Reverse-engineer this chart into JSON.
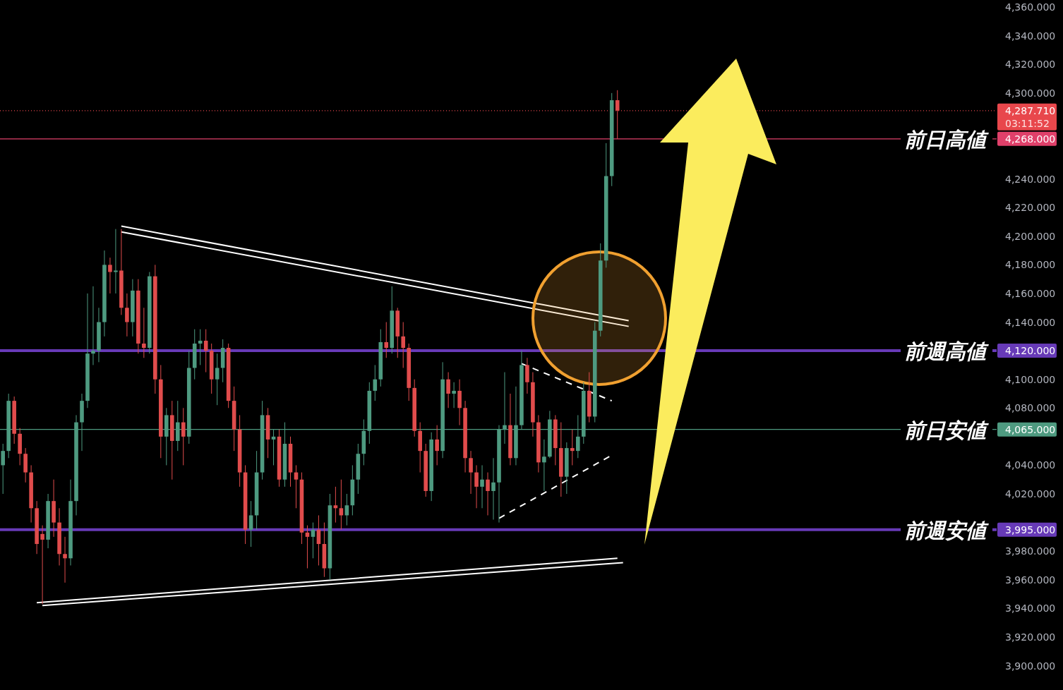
{
  "chart_data": {
    "type": "candlestick",
    "categories": [
      null,
      null,
      null,
      null,
      null,
      null,
      null,
      null,
      null,
      null,
      null,
      null,
      null,
      null,
      null,
      null,
      null,
      null,
      null,
      null,
      null,
      null,
      null,
      null,
      null,
      null,
      null,
      null,
      null,
      null,
      null,
      null,
      null,
      null,
      null,
      null,
      null,
      null,
      null,
      null,
      null,
      null,
      null,
      null,
      null,
      null,
      null,
      null,
      null,
      null,
      null,
      null,
      null,
      null,
      null,
      null,
      null,
      null,
      null,
      null,
      null,
      null,
      null,
      null,
      null,
      null,
      null,
      null,
      null,
      null,
      null,
      null,
      null,
      null,
      null,
      null,
      null,
      null,
      null,
      null,
      null,
      null,
      null,
      null,
      null,
      null,
      null,
      null,
      null,
      null,
      null,
      null,
      null,
      null,
      null,
      null,
      null,
      null,
      null,
      null,
      null,
      null,
      null,
      null,
      null,
      null,
      null,
      null,
      null,
      null,
      null,
      null,
      null,
      null,
      null,
      null,
      null,
      null,
      null,
      null,
      null,
      null,
      null,
      null,
      null,
      null,
      null,
      null,
      null,
      null,
      null,
      null,
      null,
      null,
      null,
      null,
      null,
      null,
      null,
      null,
      null,
      null,
      null,
      null,
      null,
      null,
      null,
      null,
      null,
      null,
      null,
      null,
      null,
      null,
      null,
      null,
      null,
      null,
      null,
      null,
      null,
      null,
      null,
      null,
      null,
      null,
      null,
      null,
      null,
      null,
      null,
      null,
      null,
      null,
      null,
      null
    ],
    "ohlc": [
      [
        4040,
        4055,
        4020,
        4050
      ],
      [
        4050,
        4090,
        4045,
        4085
      ],
      [
        4085,
        4088,
        4055,
        4062
      ],
      [
        4062,
        4066,
        4040,
        4048
      ],
      [
        4048,
        4052,
        4028,
        4035
      ],
      [
        4035,
        4040,
        4000,
        4010
      ],
      [
        4010,
        4015,
        3978,
        3985
      ],
      [
        3992,
        3998,
        3943,
        3988
      ],
      [
        3988,
        4020,
        3982,
        4015
      ],
      [
        4015,
        4030,
        3990,
        4000
      ],
      [
        4000,
        4010,
        3970,
        3978
      ],
      [
        3978,
        3990,
        3958,
        3975
      ],
      [
        3975,
        4030,
        3970,
        4015
      ],
      [
        4015,
        4075,
        4005,
        4070
      ],
      [
        4070,
        4090,
        4050,
        4085
      ],
      [
        4085,
        4160,
        4080,
        4118
      ],
      [
        4118,
        4165,
        4110,
        4120
      ],
      [
        4120,
        4150,
        4112,
        4140
      ],
      [
        4140,
        4190,
        4130,
        4180
      ],
      [
        4180,
        4185,
        4160,
        4175
      ],
      [
        4175,
        4205,
        4160,
        4176
      ],
      [
        4176,
        4205,
        4145,
        4150
      ],
      [
        4150,
        4160,
        4130,
        4140
      ],
      [
        4140,
        4170,
        4130,
        4162
      ],
      [
        4162,
        4170,
        4118,
        4125
      ],
      [
        4125,
        4150,
        4115,
        4122
      ],
      [
        4122,
        4175,
        4118,
        4172
      ],
      [
        4172,
        4180,
        4090,
        4100
      ],
      [
        4100,
        4110,
        4045,
        4060
      ],
      [
        4060,
        4080,
        4040,
        4075
      ],
      [
        4075,
        4085,
        4030,
        4057
      ],
      [
        4057,
        4085,
        4050,
        4070
      ],
      [
        4070,
        4080,
        4040,
        4060
      ],
      [
        4060,
        4120,
        4055,
        4108
      ],
      [
        4108,
        4135,
        4100,
        4125
      ],
      [
        4125,
        4135,
        4110,
        4127
      ],
      [
        4127,
        4135,
        4105,
        4120
      ],
      [
        4120,
        4125,
        4090,
        4100
      ],
      [
        4100,
        4118,
        4082,
        4108
      ],
      [
        4108,
        4128,
        4098,
        4122
      ],
      [
        4122,
        4125,
        4080,
        4085
      ],
      [
        4085,
        4095,
        4050,
        4065
      ],
      [
        4065,
        4075,
        4025,
        4035
      ],
      [
        4035,
        4040,
        3985,
        3995
      ],
      [
        3995,
        4015,
        3983,
        4005
      ],
      [
        4005,
        4050,
        3995,
        4035
      ],
      [
        4035,
        4085,
        4030,
        4075
      ],
      [
        4075,
        4080,
        4045,
        4058
      ],
      [
        4058,
        4065,
        4040,
        4060
      ],
      [
        4060,
        4065,
        4025,
        4030
      ],
      [
        4030,
        4070,
        4025,
        4055
      ],
      [
        4055,
        4060,
        4025,
        4035
      ],
      [
        4035,
        4040,
        4010,
        4030
      ],
      [
        4030,
        4035,
        3985,
        3993
      ],
      [
        3993,
        3998,
        3968,
        3990
      ],
      [
        3990,
        4000,
        3975,
        3995
      ],
      [
        3995,
        4005,
        3970,
        3985
      ],
      [
        3985,
        4000,
        3962,
        3968
      ],
      [
        3968,
        4020,
        3960,
        4012
      ],
      [
        4012,
        4025,
        4000,
        4010
      ],
      [
        4010,
        4030,
        3995,
        4005
      ],
      [
        4005,
        4020,
        3998,
        4012
      ],
      [
        4012,
        4040,
        4005,
        4030
      ],
      [
        4030,
        4055,
        4020,
        4048
      ],
      [
        4048,
        4072,
        4040,
        4064
      ],
      [
        4064,
        4098,
        4055,
        4092
      ],
      [
        4092,
        4110,
        4085,
        4100
      ],
      [
        4100,
        4135,
        4095,
        4126
      ],
      [
        4126,
        4140,
        4115,
        4122
      ],
      [
        4122,
        4165,
        4118,
        4148
      ],
      [
        4148,
        4150,
        4115,
        4130
      ],
      [
        4130,
        4140,
        4108,
        4122
      ],
      [
        4122,
        4125,
        4085,
        4094
      ],
      [
        4094,
        4100,
        4060,
        4064
      ],
      [
        4064,
        4070,
        4035,
        4050
      ],
      [
        4050,
        4055,
        4018,
        4022
      ],
      [
        4022,
        4063,
        4015,
        4058
      ],
      [
        4058,
        4068,
        4040,
        4050
      ],
      [
        4050,
        4112,
        4045,
        4100
      ],
      [
        4100,
        4105,
        4080,
        4090
      ],
      [
        4090,
        4098,
        4080,
        4092
      ],
      [
        4092,
        4100,
        4068,
        4080
      ],
      [
        4080,
        4085,
        4035,
        4045
      ],
      [
        4045,
        4050,
        4020,
        4035
      ],
      [
        4035,
        4040,
        4010,
        4025
      ],
      [
        4025,
        4040,
        4010,
        4030
      ],
      [
        4030,
        4035,
        4005,
        4022
      ],
      [
        4022,
        4045,
        4002,
        4028
      ],
      [
        4028,
        4068,
        4000,
        4065
      ],
      [
        4065,
        4105,
        4055,
        4068
      ],
      [
        4068,
        4090,
        4040,
        4045
      ],
      [
        4045,
        4095,
        4040,
        4068
      ],
      [
        4068,
        4120,
        4065,
        4110
      ],
      [
        4110,
        4115,
        4090,
        4098
      ],
      [
        4098,
        4105,
        4060,
        4070
      ],
      [
        4070,
        4075,
        4035,
        4042
      ],
      [
        4042,
        4058,
        4022,
        4046
      ],
      [
        4046,
        4078,
        4045,
        4072
      ],
      [
        4072,
        4075,
        4040,
        4052
      ],
      [
        4052,
        4070,
        4018,
        4032
      ],
      [
        4032,
        4056,
        4020,
        4052
      ],
      [
        4052,
        4065,
        4040,
        4050
      ],
      [
        4050,
        4075,
        4045,
        4060
      ],
      [
        4060,
        4098,
        4055,
        4092
      ],
      [
        4092,
        4105,
        4070,
        4074
      ],
      [
        4074,
        4140,
        4070,
        4134
      ],
      [
        4134,
        4195,
        4130,
        4183
      ],
      [
        4183,
        4265,
        4178,
        4242
      ],
      [
        4242,
        4300,
        4235,
        4295
      ],
      [
        4295,
        4302,
        4268,
        4287.71
      ],
      null,
      null,
      null,
      null,
      null,
      null,
      null,
      null,
      null,
      null,
      null,
      null,
      null,
      null,
      null,
      null,
      null,
      null,
      null,
      null,
      null,
      null,
      null,
      null,
      null,
      null,
      null,
      null,
      null,
      null,
      null,
      null,
      null,
      null,
      null,
      null,
      null,
      null,
      null,
      null,
      null,
      null,
      null,
      null,
      null,
      null,
      null,
      null,
      null,
      null,
      null,
      null,
      null,
      null,
      null,
      null,
      null,
      null,
      null,
      null,
      null,
      null,
      null,
      null,
      null,
      null
    ],
    "series": [
      {
        "type": "line",
        "color": "#ffffff",
        "values": [
          null,
          null,
          null,
          null,
          null,
          null,
          null,
          null,
          null,
          null,
          null,
          null,
          null,
          null,
          null,
          null,
          null,
          null,
          null,
          null,
          null,
          4207,
          null,
          null,
          null,
          null,
          null,
          null,
          null,
          null,
          null,
          null,
          null,
          null,
          null,
          null,
          null,
          null,
          null,
          null,
          null,
          null,
          null,
          null,
          null,
          null,
          null,
          null,
          null,
          null,
          null,
          null,
          null,
          null,
          null,
          null,
          null,
          null,
          null,
          null,
          null,
          null,
          null,
          null,
          null,
          null,
          null,
          null,
          null,
          null,
          null,
          null,
          null,
          null,
          null,
          null,
          null,
          null,
          null,
          null,
          null,
          null,
          null,
          null,
          null,
          null,
          null,
          null,
          null,
          null,
          null,
          null,
          null,
          null,
          null,
          null,
          null,
          null,
          null,
          null,
          null,
          null,
          null,
          null,
          null,
          null,
          null,
          null,
          null,
          null,
          null,
          4141,
          null,
          null,
          null,
          null,
          null,
          null,
          null,
          null,
          null,
          null,
          null,
          null,
          null,
          null,
          null,
          null,
          null,
          null,
          null,
          null,
          null,
          null,
          null,
          null,
          null,
          null,
          null,
          null,
          null,
          null,
          null,
          null,
          null,
          null,
          null,
          null,
          null,
          null,
          null,
          null,
          null,
          null,
          null,
          null,
          null,
          null,
          null,
          null,
          null,
          null,
          null,
          null,
          null,
          null,
          null,
          null,
          null,
          null,
          null,
          null,
          null,
          null,
          null,
          null
        ]
      },
      {
        "type": "line",
        "color": "#ffffff",
        "values": [
          null,
          null,
          null,
          null,
          null,
          null,
          null,
          null,
          null,
          null,
          null,
          null,
          null,
          null,
          null,
          null,
          null,
          null,
          null,
          null,
          null,
          4203,
          null,
          null,
          null,
          null,
          null,
          null,
          null,
          null,
          null,
          null,
          null,
          null,
          null,
          null,
          null,
          null,
          null,
          null,
          null,
          null,
          null,
          null,
          null,
          null,
          null,
          null,
          null,
          null,
          null,
          null,
          null,
          null,
          null,
          null,
          null,
          null,
          null,
          null,
          null,
          null,
          null,
          null,
          null,
          null,
          null,
          null,
          null,
          null,
          null,
          null,
          null,
          null,
          null,
          null,
          null,
          null,
          null,
          null,
          null,
          null,
          null,
          null,
          null,
          null,
          null,
          null,
          null,
          null,
          null,
          null,
          null,
          null,
          null,
          null,
          null,
          null,
          null,
          null,
          null,
          null,
          null,
          null,
          null,
          null,
          null,
          null,
          null,
          null,
          null,
          4137,
          null,
          null,
          null,
          null,
          null,
          null,
          null,
          null,
          null,
          null,
          null,
          null,
          null,
          null,
          null,
          null,
          null,
          null,
          null,
          null,
          null,
          null,
          null,
          null,
          null,
          null,
          null,
          null,
          null,
          null,
          null,
          null,
          null,
          null,
          null,
          null,
          null,
          null,
          null,
          null,
          null,
          null,
          null,
          null,
          null,
          null,
          null,
          null,
          null,
          null,
          null,
          null,
          null,
          null,
          null,
          null,
          null,
          null,
          null,
          null,
          null,
          null,
          null,
          null
        ]
      },
      {
        "type": "line",
        "color": "#ffffff",
        "values": [
          null,
          null,
          null,
          null,
          null,
          null,
          3944,
          null,
          null,
          null,
          null,
          null,
          null,
          null,
          null,
          null,
          null,
          null,
          null,
          null,
          null,
          null,
          null,
          null,
          null,
          null,
          null,
          null,
          null,
          null,
          null,
          null,
          null,
          null,
          null,
          null,
          null,
          null,
          null,
          null,
          null,
          null,
          null,
          null,
          null,
          null,
          null,
          null,
          null,
          null,
          null,
          null,
          null,
          null,
          null,
          null,
          null,
          null,
          null,
          null,
          null,
          null,
          null,
          null,
          null,
          null,
          null,
          null,
          null,
          null,
          null,
          null,
          null,
          null,
          null,
          null,
          null,
          null,
          null,
          null,
          null,
          null,
          null,
          null,
          null,
          null,
          null,
          null,
          null,
          null,
          null,
          null,
          null,
          null,
          null,
          null,
          null,
          null,
          null,
          null,
          null,
          null,
          null,
          null,
          null,
          null,
          null,
          null,
          null,
          3975,
          null,
          null,
          null,
          null,
          null,
          null,
          null,
          null,
          null,
          null,
          null,
          null,
          null,
          null,
          null,
          null,
          null,
          null,
          null,
          null,
          null,
          null,
          null,
          null,
          null,
          null,
          null,
          null,
          null,
          null,
          null,
          null,
          null,
          null,
          null,
          null,
          null,
          null,
          null,
          null,
          null,
          null,
          null,
          null,
          null,
          null,
          null,
          null,
          null,
          null,
          null,
          null,
          null,
          null,
          null,
          null,
          null,
          null,
          null,
          null,
          null,
          null,
          null,
          null,
          null,
          null
        ]
      },
      {
        "type": "line",
        "color": "#ffffff",
        "values": [
          null,
          null,
          null,
          null,
          null,
          null,
          null,
          3942,
          null,
          null,
          null,
          null,
          null,
          null,
          null,
          null,
          null,
          null,
          null,
          null,
          null,
          null,
          null,
          null,
          null,
          null,
          null,
          null,
          null,
          null,
          null,
          null,
          null,
          null,
          null,
          null,
          null,
          null,
          null,
          null,
          null,
          null,
          null,
          null,
          null,
          null,
          null,
          null,
          null,
          null,
          null,
          null,
          null,
          null,
          null,
          null,
          null,
          null,
          null,
          null,
          null,
          null,
          null,
          null,
          null,
          null,
          null,
          null,
          null,
          null,
          null,
          null,
          null,
          null,
          null,
          null,
          null,
          null,
          null,
          null,
          null,
          null,
          null,
          null,
          null,
          null,
          null,
          null,
          null,
          null,
          null,
          null,
          null,
          null,
          null,
          null,
          null,
          null,
          null,
          null,
          null,
          null,
          null,
          null,
          null,
          null,
          null,
          null,
          null,
          null,
          3972,
          null,
          null,
          null,
          null,
          null,
          null,
          null,
          null,
          null,
          null,
          null,
          null,
          null,
          null,
          null,
          null,
          null,
          null,
          null,
          null,
          null,
          null,
          null,
          null,
          null,
          null,
          null,
          null,
          null,
          null,
          null,
          null,
          null,
          null,
          null,
          null,
          null,
          null,
          null,
          null,
          null,
          null,
          null,
          null,
          null,
          null,
          null,
          null,
          null,
          null,
          null,
          null,
          null,
          null,
          null,
          null,
          null,
          null,
          null,
          null,
          null,
          null,
          null,
          null,
          null
        ]
      },
      {
        "type": "line",
        "color": "#ffffff",
        "line_style": "dashed",
        "values": [
          null,
          null,
          null,
          null,
          null,
          null,
          null,
          null,
          null,
          null,
          null,
          null,
          null,
          null,
          null,
          null,
          null,
          null,
          null,
          null,
          null,
          null,
          null,
          null,
          null,
          null,
          null,
          null,
          null,
          null,
          null,
          null,
          null,
          null,
          null,
          null,
          null,
          null,
          null,
          null,
          null,
          null,
          null,
          null,
          null,
          null,
          null,
          null,
          null,
          null,
          null,
          null,
          null,
          null,
          null,
          null,
          null,
          null,
          null,
          null,
          null,
          null,
          null,
          null,
          null,
          null,
          null,
          null,
          null,
          null,
          null,
          null,
          null,
          null,
          null,
          null,
          null,
          null,
          null,
          null,
          null,
          null,
          null,
          null,
          null,
          null,
          null,
          null,
          null,
          null,
          null,
          null,
          4111,
          null,
          null,
          null,
          null,
          null,
          null,
          null,
          null,
          null,
          null,
          null,
          null,
          null,
          null,
          null,
          4085,
          null,
          null,
          null,
          null,
          null,
          null,
          null,
          null,
          null,
          null,
          null,
          null,
          null,
          null,
          null,
          null,
          null,
          null,
          null,
          null,
          null,
          null,
          null,
          null,
          null,
          null,
          null,
          null,
          null,
          null,
          null,
          null,
          null,
          null,
          null,
          null,
          null,
          null,
          null,
          null,
          null,
          null,
          null,
          null,
          null,
          null,
          null,
          null,
          null,
          null,
          null,
          null,
          null,
          null,
          null,
          null,
          null,
          null,
          null,
          null,
          null,
          null,
          null,
          null,
          null,
          null,
          null
        ]
      },
      {
        "type": "line",
        "color": "#ffffff",
        "line_style": "dashed",
        "values": [
          null,
          null,
          null,
          null,
          null,
          null,
          null,
          null,
          null,
          null,
          null,
          null,
          null,
          null,
          null,
          null,
          null,
          null,
          null,
          null,
          null,
          null,
          null,
          null,
          null,
          null,
          null,
          null,
          null,
          null,
          null,
          null,
          null,
          null,
          null,
          null,
          null,
          null,
          null,
          null,
          null,
          null,
          null,
          null,
          null,
          null,
          null,
          null,
          null,
          null,
          null,
          null,
          null,
          null,
          null,
          null,
          null,
          null,
          null,
          null,
          null,
          null,
          null,
          null,
          null,
          null,
          null,
          null,
          null,
          null,
          null,
          null,
          null,
          null,
          null,
          null,
          null,
          null,
          null,
          null,
          null,
          null,
          null,
          null,
          null,
          null,
          null,
          null,
          4003,
          null,
          null,
          null,
          null,
          null,
          null,
          null,
          null,
          null,
          null,
          null,
          null,
          null,
          null,
          null,
          null,
          null,
          null,
          null,
          4047,
          null,
          null,
          null,
          null,
          null,
          null,
          null,
          null,
          null,
          null,
          null,
          null,
          null,
          null,
          null,
          null,
          null,
          null,
          null,
          null,
          null,
          null,
          null,
          null,
          null,
          null,
          null,
          null,
          null,
          null,
          null,
          null,
          null,
          null,
          null,
          null,
          null,
          null,
          null,
          null,
          null,
          null,
          null,
          null,
          null,
          null,
          null,
          null,
          null,
          null,
          null,
          null,
          null,
          null,
          null,
          null,
          null,
          null,
          null,
          null,
          null,
          null,
          null,
          null,
          null,
          null,
          null
        ]
      }
    ],
    "ylim": [
      3883,
      4365
    ],
    "yticks": [
      {
        "value": 4360,
        "label": "4,360.000"
      },
      {
        "value": 4340,
        "label": "4,340.000"
      },
      {
        "value": 4320,
        "label": "4,320.000"
      },
      {
        "value": 4300,
        "label": "4,300.000"
      },
      {
        "value": 4287.71,
        "label": "4,287.710"
      },
      {
        "value": 4268,
        "label": "4,268.000"
      },
      {
        "value": 4240,
        "label": "4,240.000"
      },
      {
        "value": 4220,
        "label": "4,220.000"
      },
      {
        "value": 4200,
        "label": "4,200.000"
      },
      {
        "value": 4180,
        "label": "4,180.000"
      },
      {
        "value": 4160,
        "label": "4,160.000"
      },
      {
        "value": 4140,
        "label": "4,140.000"
      },
      {
        "value": 4120,
        "label": "4,120.000"
      },
      {
        "value": 4100,
        "label": "4,100.000"
      },
      {
        "value": 4080,
        "label": "4,080.000"
      },
      {
        "value": 4065,
        "label": "4,065.000"
      },
      {
        "value": 4040,
        "label": "4,040.000"
      },
      {
        "value": 4020,
        "label": "4,020.000"
      },
      {
        "value": 3995,
        "label": "3,995.000"
      },
      {
        "value": 3980,
        "label": "3,980.000"
      },
      {
        "value": 3960,
        "label": "3,960.000"
      },
      {
        "value": 3940,
        "label": "3,940.000"
      },
      {
        "value": 3920,
        "label": "3,920.000"
      },
      {
        "value": 3900,
        "label": "3,900.000"
      }
    ],
    "tick_labels": "y",
    "grid": false,
    "annotations": [
      "03:11:52"
    ],
    "ref_lines": [
      {
        "axis": "y",
        "value": 4287.71,
        "color": "#e8474c",
        "line_style": "dotted"
      },
      {
        "axis": "y",
        "value": 4268,
        "label": "前日高値",
        "color": "#e0406a",
        "line_style": "solid"
      },
      {
        "axis": "y",
        "value": 4120,
        "label": "前週高値",
        "color": "#673ab7",
        "line_style": "solid"
      },
      {
        "axis": "y",
        "value": 4065,
        "label": "前日安値",
        "color": "#4e9a80",
        "line_style": "solid"
      },
      {
        "axis": "y",
        "value": 3995,
        "label": "前週安値",
        "color": "#673ab7",
        "line_style": "solid"
      }
    ]
  }
}
